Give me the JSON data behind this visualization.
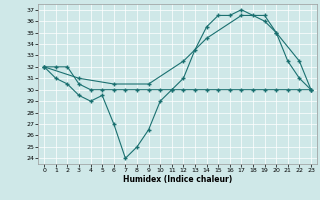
{
  "xlabel": "Humidex (Indice chaleur)",
  "bg_color": "#cfe8e8",
  "line_color": "#1a7070",
  "xlim": [
    -0.5,
    23.5
  ],
  "ylim": [
    23.5,
    37.5
  ],
  "yticks": [
    24,
    25,
    26,
    27,
    28,
    29,
    30,
    31,
    32,
    33,
    34,
    35,
    36,
    37
  ],
  "xticks": [
    0,
    1,
    2,
    3,
    4,
    5,
    6,
    7,
    8,
    9,
    10,
    11,
    12,
    13,
    14,
    15,
    16,
    17,
    18,
    19,
    20,
    21,
    22,
    23
  ],
  "line1_x": [
    0,
    1,
    2,
    3,
    4,
    5,
    6,
    7,
    8,
    9,
    10,
    11,
    12,
    13,
    14,
    15,
    16,
    17,
    18,
    19,
    20,
    21,
    22,
    23
  ],
  "line1_y": [
    32,
    31,
    30.5,
    29.5,
    29,
    29.5,
    27,
    24,
    25,
    26.5,
    29,
    30,
    31,
    33.5,
    35.5,
    36.5,
    36.5,
    37,
    36.5,
    36,
    35,
    32.5,
    31,
    30
  ],
  "line2_x": [
    0,
    1,
    2,
    3,
    4,
    5,
    6,
    7,
    8,
    9,
    10,
    11,
    12,
    13,
    14,
    15,
    16,
    17,
    18,
    19,
    20,
    21,
    22,
    23
  ],
  "line2_y": [
    32,
    32.0,
    32.0,
    30.5,
    30,
    30,
    30,
    30,
    30,
    30,
    30,
    30,
    30,
    30,
    30,
    30,
    30,
    30,
    30,
    30,
    30,
    30,
    30,
    30
  ],
  "line3_x": [
    0,
    3,
    6,
    9,
    12,
    14,
    17,
    19,
    20,
    22,
    23
  ],
  "line3_y": [
    32,
    31,
    30.5,
    30.5,
    32.5,
    34.5,
    36.5,
    36.5,
    35,
    32.5,
    30
  ]
}
